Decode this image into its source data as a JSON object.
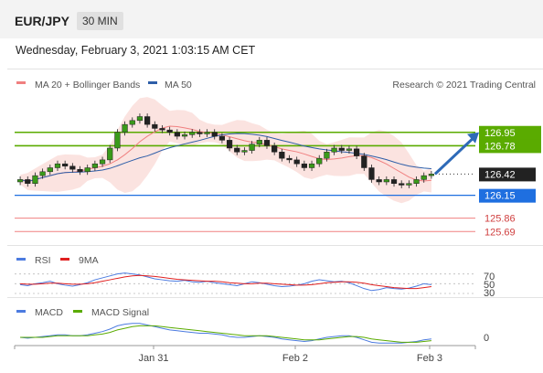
{
  "header": {
    "pair": "EUR/JPY",
    "timeframe": "30 MIN",
    "datetime": "Wednesday, February 3, 2021 1:03:15 AM CET"
  },
  "chart_data": [
    {
      "type": "candlestick",
      "legend": [
        {
          "name": "MA 20 + Bollinger Bands",
          "color": "#f08080"
        },
        {
          "name": "MA 50",
          "color": "#2e5ea8"
        }
      ],
      "credit": "Research © 2021 Trading Central",
      "ylim": [
        125.6,
        127.4
      ],
      "levels": [
        {
          "value": "126.95",
          "role": "resistance-2",
          "color": "#5aab00"
        },
        {
          "value": "126.78",
          "role": "resistance-1",
          "color": "#5aab00"
        },
        {
          "value": "126.42",
          "role": "last-price",
          "color": "#222222"
        },
        {
          "value": "126.15",
          "role": "pivot",
          "color": "#1f6fe0"
        },
        {
          "value": "125.86",
          "role": "support-1",
          "color": "#f08080"
        },
        {
          "value": "125.69",
          "role": "support-2",
          "color": "#f08080"
        }
      ],
      "closes": [
        126.35,
        126.3,
        126.4,
        126.45,
        126.5,
        126.55,
        126.52,
        126.48,
        126.45,
        126.5,
        126.55,
        126.6,
        126.75,
        126.95,
        127.05,
        127.1,
        127.15,
        127.05,
        127.0,
        126.98,
        126.95,
        126.9,
        126.92,
        126.95,
        126.93,
        126.95,
        126.9,
        126.85,
        126.75,
        126.7,
        126.72,
        126.8,
        126.85,
        126.78,
        126.7,
        126.62,
        126.6,
        126.55,
        126.5,
        126.55,
        126.62,
        126.7,
        126.75,
        126.72,
        126.74,
        126.65,
        126.5,
        126.35,
        126.32,
        126.35,
        126.3,
        126.28,
        126.3,
        126.35,
        126.4,
        126.42
      ],
      "arrow_target": 126.95,
      "x_ticks": [
        "Jan 31",
        "Feb 2",
        "Feb 3"
      ]
    },
    {
      "type": "line",
      "title": "RSI",
      "legend": [
        {
          "name": "RSI",
          "color": "#4c7be0"
        },
        {
          "name": "9MA",
          "color": "#e02020"
        }
      ],
      "ylim": [
        30,
        75
      ],
      "y_ticks": [
        "70",
        "50",
        "30"
      ],
      "rsi": [
        48,
        46,
        50,
        52,
        55,
        50,
        47,
        45,
        48,
        52,
        58,
        62,
        66,
        70,
        72,
        70,
        68,
        64,
        60,
        58,
        56,
        55,
        57,
        54,
        53,
        55,
        52,
        50,
        48,
        46,
        50,
        54,
        52,
        49,
        46,
        44,
        45,
        47,
        50,
        55,
        58,
        56,
        54,
        55,
        52,
        46,
        40,
        36,
        38,
        42,
        40,
        39,
        41,
        45,
        50,
        48
      ],
      "ma9": [
        50,
        49,
        49,
        50,
        51,
        51,
        50,
        49,
        49,
        50,
        52,
        55,
        58,
        61,
        64,
        66,
        67,
        66,
        65,
        63,
        61,
        59,
        58,
        57,
        56,
        55,
        55,
        54,
        52,
        51,
        50,
        50,
        51,
        51,
        50,
        49,
        48,
        47,
        47,
        48,
        50,
        52,
        53,
        54,
        54,
        53,
        51,
        48,
        46,
        44,
        42,
        41,
        40,
        40,
        42,
        44
      ]
    },
    {
      "type": "line",
      "title": "MACD",
      "legend": [
        {
          "name": "MACD",
          "color": "#4c7be0"
        },
        {
          "name": "MACD Signal",
          "color": "#5aab00"
        }
      ],
      "y_ticks": [
        "0"
      ],
      "macd": [
        0.0,
        -0.01,
        0.0,
        0.01,
        0.02,
        0.03,
        0.03,
        0.02,
        0.02,
        0.03,
        0.05,
        0.07,
        0.1,
        0.14,
        0.16,
        0.17,
        0.17,
        0.15,
        0.13,
        0.11,
        0.09,
        0.08,
        0.07,
        0.06,
        0.05,
        0.05,
        0.04,
        0.03,
        0.01,
        0.0,
        0.0,
        0.01,
        0.02,
        0.01,
        0.0,
        -0.02,
        -0.03,
        -0.04,
        -0.05,
        -0.04,
        -0.02,
        0.0,
        0.01,
        0.02,
        0.02,
        0.0,
        -0.03,
        -0.06,
        -0.07,
        -0.07,
        -0.07,
        -0.07,
        -0.06,
        -0.05,
        -0.03,
        -0.02
      ],
      "signal": [
        0.0,
        0.0,
        0.0,
        0.0,
        0.01,
        0.02,
        0.02,
        0.02,
        0.02,
        0.02,
        0.03,
        0.04,
        0.06,
        0.09,
        0.11,
        0.13,
        0.14,
        0.14,
        0.14,
        0.13,
        0.12,
        0.11,
        0.1,
        0.09,
        0.08,
        0.07,
        0.06,
        0.05,
        0.04,
        0.03,
        0.02,
        0.02,
        0.02,
        0.02,
        0.01,
        0.0,
        -0.01,
        -0.02,
        -0.03,
        -0.03,
        -0.03,
        -0.02,
        -0.01,
        0.0,
        0.01,
        0.01,
        0.0,
        -0.02,
        -0.03,
        -0.04,
        -0.05,
        -0.06,
        -0.06,
        -0.06,
        -0.05,
        -0.04
      ]
    }
  ]
}
